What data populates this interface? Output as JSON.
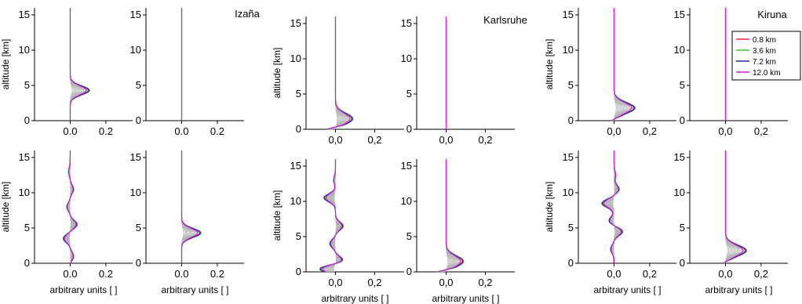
{
  "chart_data": {
    "type": "line",
    "ylabel": "altitude [km]",
    "xlabel": "arbitrary units [ ]",
    "ylim": [
      0,
      16
    ],
    "yticks": [
      0,
      5,
      10,
      15
    ],
    "legend_position": "top-right",
    "series": [
      {
        "name": "0.8 km",
        "color": "#e8283c"
      },
      {
        "name": "3.6 km",
        "color": "#2ec82e"
      },
      {
        "name": "7.2 km",
        "color": "#1c28b4"
      },
      {
        "name": "12.0 km",
        "color": "#dc18dc"
      }
    ],
    "background_color": "#b4b4b4",
    "sites": [
      {
        "name": "Izaña",
        "xlim": [
          -0.2,
          0.35
        ],
        "xticks": [
          {
            "v": 0.0,
            "label": "0.0"
          },
          {
            "v": 0.2,
            "label": "0.2"
          }
        ],
        "panels": [
          {
            "row": 0,
            "col": 0,
            "shape": "peak",
            "center": 4.3,
            "width": 0.9,
            "amp": 0.11,
            "surface": 1.2,
            "decay": 0.4
          },
          {
            "row": 0,
            "col": 1,
            "shape": "flat"
          },
          {
            "row": 1,
            "col": 0,
            "shape": "wiggle",
            "amp": 0.03,
            "nodes": [
              [
                1,
                0.02
              ],
              [
                3.5,
                -0.04
              ],
              [
                5.5,
                0.04
              ],
              [
                8,
                -0.02
              ],
              [
                10.5,
                0.02
              ],
              [
                13,
                -0.01
              ]
            ]
          },
          {
            "row": 1,
            "col": 1,
            "shape": "peak",
            "center": 4.3,
            "width": 0.9,
            "amp": 0.11,
            "surface": 1.2,
            "decay": 0.4
          }
        ]
      },
      {
        "name": "Karlsruhe",
        "xlim": [
          -0.15,
          0.35
        ],
        "xticks": [
          {
            "v": 0.0,
            "label": "0,0"
          },
          {
            "v": 0.2,
            "label": "0,2"
          }
        ],
        "panels": [
          {
            "row": 0,
            "col": 0,
            "shape": "surface",
            "center": 1.5,
            "width": 1.1,
            "amp": 0.09,
            "neg": -0.06
          },
          {
            "row": 0,
            "col": 1,
            "shape": "flat"
          },
          {
            "row": 1,
            "col": 0,
            "shape": "wiggle",
            "amp": 0.05,
            "nodes": [
              [
                0.5,
                -0.09
              ],
              [
                1.5,
                0.05
              ],
              [
                4,
                -0.03
              ],
              [
                6.5,
                0.04
              ],
              [
                10.5,
                -0.06
              ],
              [
                13,
                -0.01
              ]
            ]
          },
          {
            "row": 1,
            "col": 1,
            "shape": "surface",
            "center": 1.5,
            "width": 1.1,
            "amp": 0.09,
            "neg": -0.06
          }
        ]
      },
      {
        "name": "Kiruna",
        "xlim": [
          -0.2,
          0.35
        ],
        "xticks": [
          {
            "v": 0.0,
            "label": "0,0"
          },
          {
            "v": 0.2,
            "label": "0,2"
          }
        ],
        "panels": [
          {
            "row": 0,
            "col": 0,
            "shape": "surface",
            "center": 1.8,
            "width": 1.1,
            "amp": 0.12,
            "neg": -0.02
          },
          {
            "row": 0,
            "col": 1,
            "shape": "flat"
          },
          {
            "row": 1,
            "col": 0,
            "shape": "wiggle",
            "amp": 0.05,
            "nodes": [
              [
                2,
                -0.02
              ],
              [
                4.5,
                0.05
              ],
              [
                6,
                -0.03
              ],
              [
                8.5,
                -0.07
              ],
              [
                10.5,
                0.03
              ],
              [
                12.5,
                0.01
              ]
            ]
          },
          {
            "row": 1,
            "col": 1,
            "shape": "surface",
            "center": 1.8,
            "width": 1.1,
            "amp": 0.12,
            "neg": -0.02
          }
        ]
      }
    ]
  }
}
